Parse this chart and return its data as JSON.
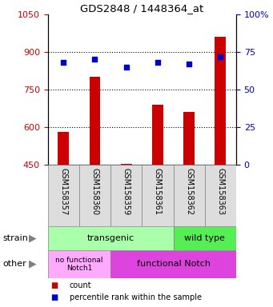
{
  "title": "GDS2848 / 1448364_at",
  "samples": [
    "GSM158357",
    "GSM158360",
    "GSM158359",
    "GSM158361",
    "GSM158362",
    "GSM158363"
  ],
  "counts": [
    580,
    800,
    455,
    690,
    660,
    960
  ],
  "percentiles": [
    68,
    70,
    65,
    68,
    67,
    72
  ],
  "ylim_left": [
    450,
    1050
  ],
  "ylim_right": [
    0,
    100
  ],
  "yticks_left": [
    450,
    600,
    750,
    900,
    1050
  ],
  "yticks_right": [
    0,
    25,
    50,
    75,
    100
  ],
  "bar_color": "#cc0000",
  "dot_color": "#0000cc",
  "bar_bottom": 450,
  "strain_transgenic_color": "#aaffaa",
  "strain_wildtype_color": "#55ee55",
  "other_nofunc_color": "#ffaaff",
  "other_func_color": "#dd44dd",
  "tick_label_color_left": "#cc0000",
  "tick_label_color_right": "#0000cc",
  "sample_box_color": "#dddddd",
  "grid_dotline_color": "black",
  "legend_count_color": "#cc0000",
  "legend_pct_color": "#0000cc"
}
